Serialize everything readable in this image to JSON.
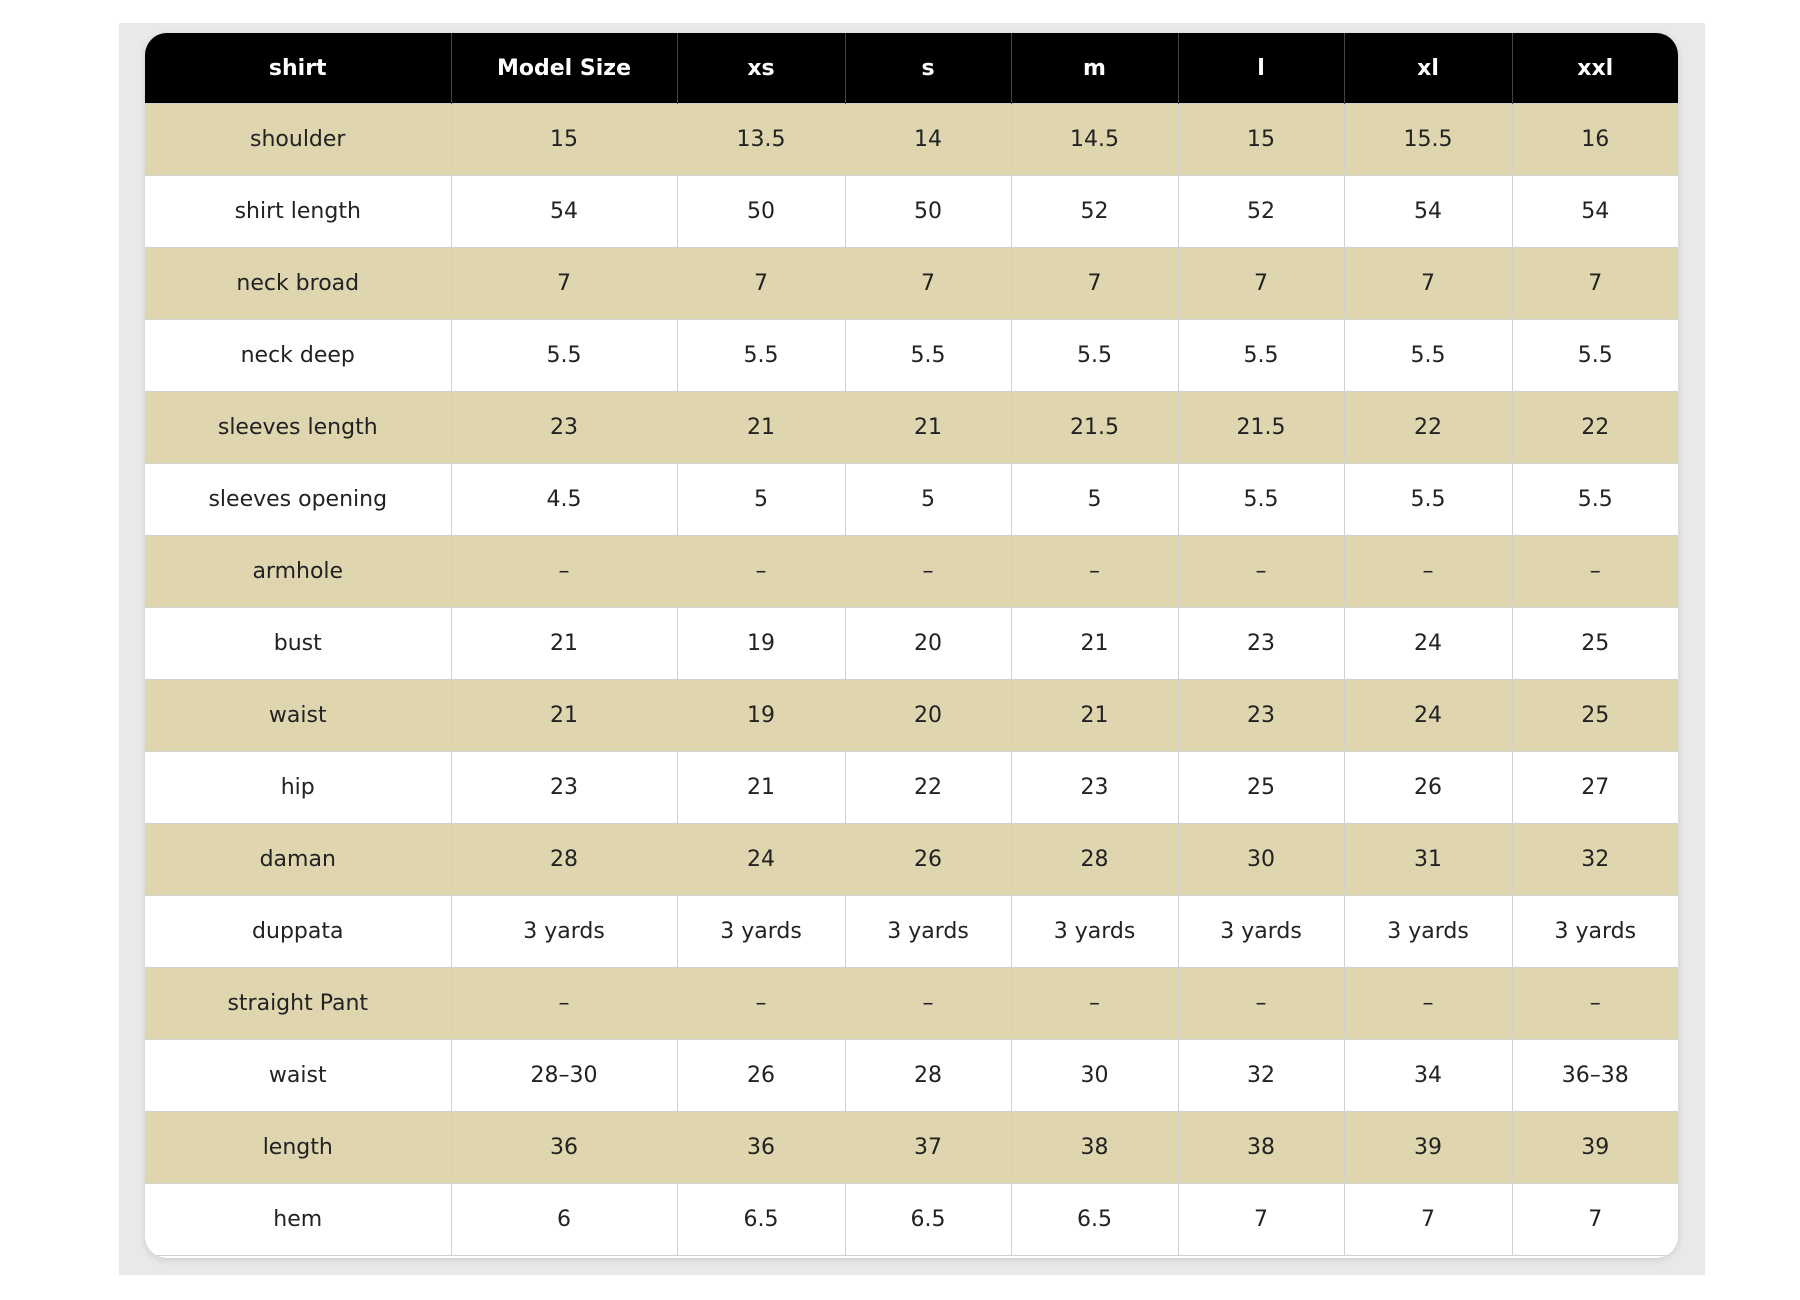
{
  "table": {
    "header": [
      "shirt",
      "Model Size",
      "xs",
      "s",
      "m",
      "l",
      "xl",
      "xxl"
    ],
    "rows": [
      [
        "shoulder",
        "15",
        "13.5",
        "14",
        "14.5",
        "15",
        "15.5",
        "16"
      ],
      [
        "shirt length",
        "54",
        "50",
        "50",
        "52",
        "52",
        "54",
        "54"
      ],
      [
        "neck broad",
        "7",
        "7",
        "7",
        "7",
        "7",
        "7",
        "7"
      ],
      [
        "neck deep",
        "5.5",
        "5.5",
        "5.5",
        "5.5",
        "5.5",
        "5.5",
        "5.5"
      ],
      [
        "sleeves length",
        "23",
        "21",
        "21",
        "21.5",
        "21.5",
        "22",
        "22"
      ],
      [
        "sleeves opening",
        "4.5",
        "5",
        "5",
        "5",
        "5.5",
        "5.5",
        "5.5"
      ],
      [
        "armhole",
        "–",
        "–",
        "–",
        "–",
        "–",
        "–",
        "–"
      ],
      [
        "bust",
        "21",
        "19",
        "20",
        "21",
        "23",
        "24",
        "25"
      ],
      [
        "waist",
        "21",
        "19",
        "20",
        "21",
        "23",
        "24",
        "25"
      ],
      [
        "hip",
        "23",
        "21",
        "22",
        "23",
        "25",
        "26",
        "27"
      ],
      [
        "daman",
        "28",
        "24",
        "26",
        "28",
        "30",
        "31",
        "32"
      ],
      [
        "duppata",
        "3 yards",
        "3 yards",
        "3 yards",
        "3 yards",
        "3 yards",
        "3 yards",
        "3 yards"
      ],
      [
        "straight Pant",
        "–",
        "–",
        "–",
        "–",
        "–",
        "–",
        "–"
      ],
      [
        "waist",
        "28–30",
        "26",
        "28",
        "30",
        "32",
        "34",
        "36–38"
      ],
      [
        "length",
        "36",
        "36",
        "37",
        "38",
        "38",
        "39",
        "39"
      ],
      [
        "hem",
        "6",
        "6.5",
        "6.5",
        "6.5",
        "7",
        "7",
        "7"
      ]
    ]
  }
}
